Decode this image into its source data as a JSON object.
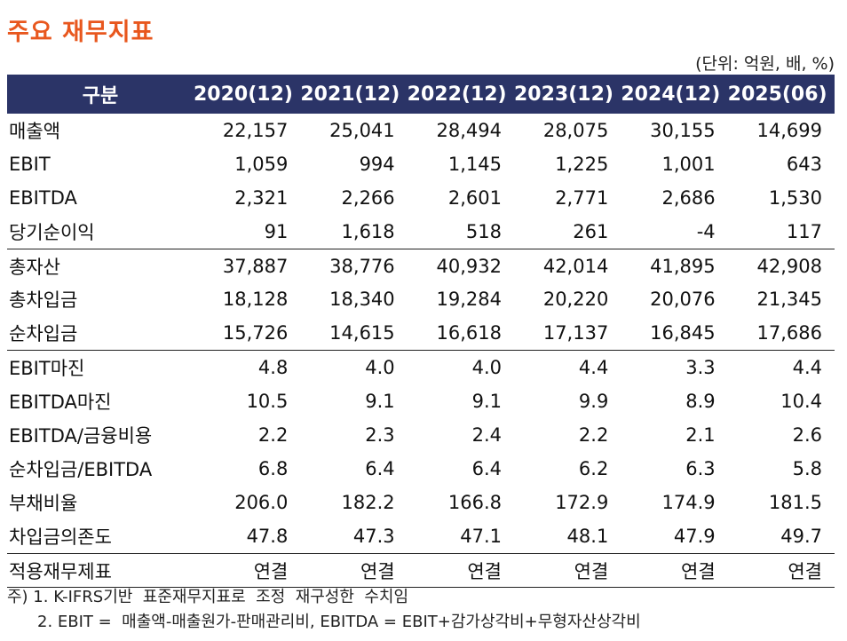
{
  "title": "주요  재무지표",
  "unit": "(단위: 억원, 배, %)",
  "header": [
    "구분",
    "2020(12)",
    "2021(12)",
    "2022(12)",
    "2023(12)",
    "2024(12)",
    "2025(06)"
  ],
  "rows": [
    {
      "label": "매출액",
      "values": [
        "22,157",
        "25,041",
        "28,494",
        "28,075",
        "30,155",
        "14,699"
      ]
    },
    {
      "label": "EBIT",
      "values": [
        "1,059",
        "994",
        "1,145",
        "1,225",
        "1,001",
        "643"
      ]
    },
    {
      "label": "EBITDA",
      "values": [
        "2,321",
        "2,266",
        "2,601",
        "2,771",
        "2,686",
        "1,530"
      ]
    },
    {
      "label": "당기순이익",
      "values": [
        "91",
        "1,618",
        "518",
        "261",
        "-4",
        "117"
      ]
    },
    {
      "label": "총자산",
      "values": [
        "37,887",
        "38,776",
        "40,932",
        "42,014",
        "41,895",
        "42,908"
      ]
    },
    {
      "label": "총차입금",
      "values": [
        "18,128",
        "18,340",
        "19,284",
        "20,220",
        "20,076",
        "21,345"
      ]
    },
    {
      "label": "순차입금",
      "values": [
        "15,726",
        "14,615",
        "16,618",
        "17,137",
        "16,845",
        "17,686"
      ]
    },
    {
      "label": "EBIT마진",
      "values": [
        "4.8",
        "4.0",
        "4.0",
        "4.4",
        "3.3",
        "4.4"
      ]
    },
    {
      "label": "EBITDA마진",
      "values": [
        "10.5",
        "9.1",
        "9.1",
        "9.9",
        "8.9",
        "10.4"
      ]
    },
    {
      "label": "EBITDA/금융비용",
      "values": [
        "2.2",
        "2.3",
        "2.4",
        "2.2",
        "2.1",
        "2.6"
      ]
    },
    {
      "label": "순차입금/EBITDA",
      "values": [
        "6.8",
        "6.4",
        "6.4",
        "6.2",
        "6.3",
        "5.8"
      ]
    },
    {
      "label": "부채비율",
      "values": [
        "206.0",
        "182.2",
        "166.8",
        "172.9",
        "174.9",
        "181.5"
      ]
    },
    {
      "label": "차입금의존도",
      "values": [
        "47.8",
        "47.3",
        "47.1",
        "48.1",
        "47.9",
        "49.7"
      ]
    },
    {
      "label": "적용재무제표",
      "values": [
        "연결",
        "연결",
        "연결",
        "연결",
        "연결",
        "연결"
      ]
    }
  ],
  "notes": [
    "주) 1. K-IFRS기반  표준재무지표로  조정  재구성한  수치임",
    "2. EBIT =  매출액-매출원가-판매관리비, EBITDA = EBIT+감가상각비+무형자산상각비"
  ],
  "colors": {
    "title": "#e8571e",
    "header_bg": "#2b3467"
  }
}
